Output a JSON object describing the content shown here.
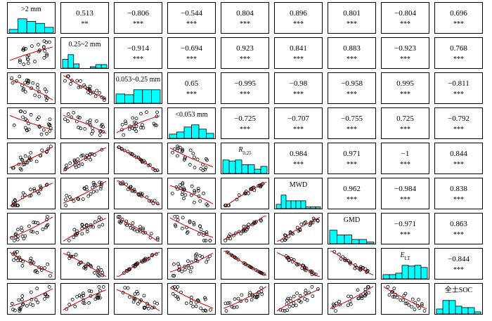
{
  "chart_data": {
    "type": "scatter-matrix",
    "variables": [
      ">2 mm",
      "0.25~2 mm",
      "0.053~0.25 mm",
      "<0.053 mm",
      "R0.25",
      "MWD",
      "GMD",
      "ELT",
      "全土SOC"
    ],
    "diagonal_labels": [
      {
        "main": ">2 mm",
        "sub": "",
        "italic": false
      },
      {
        "main": "0.25~2 mm",
        "sub": "",
        "italic": false
      },
      {
        "main": "0.053~0.25 mm",
        "sub": "",
        "italic": false
      },
      {
        "main": "<0.053 mm",
        "sub": "",
        "italic": false
      },
      {
        "main": "R",
        "sub": "0.25",
        "italic": true
      },
      {
        "main": "MWD",
        "sub": "",
        "italic": false
      },
      {
        "main": "GMD",
        "sub": "",
        "italic": false
      },
      {
        "main": "E",
        "sub": "LT",
        "italic": true
      },
      {
        "main": "全土SOC",
        "sub": "",
        "italic": false
      }
    ],
    "correlations": [
      {
        "row": 1,
        "col": 2,
        "r": "0.513",
        "sig": "**"
      },
      {
        "row": 1,
        "col": 3,
        "r": "−0.806",
        "sig": "***"
      },
      {
        "row": 1,
        "col": 4,
        "r": "−0.544",
        "sig": "***"
      },
      {
        "row": 1,
        "col": 5,
        "r": "0.804",
        "sig": "***"
      },
      {
        "row": 1,
        "col": 6,
        "r": "0.896",
        "sig": "***"
      },
      {
        "row": 1,
        "col": 7,
        "r": "0.801",
        "sig": "***"
      },
      {
        "row": 1,
        "col": 8,
        "r": "−0.804",
        "sig": "***"
      },
      {
        "row": 1,
        "col": 9,
        "r": "0.696",
        "sig": "***"
      },
      {
        "row": 2,
        "col": 3,
        "r": "−0.914",
        "sig": "***"
      },
      {
        "row": 2,
        "col": 4,
        "r": "−0.694",
        "sig": "***"
      },
      {
        "row": 2,
        "col": 5,
        "r": "0.923",
        "sig": "***"
      },
      {
        "row": 2,
        "col": 6,
        "r": "0.841",
        "sig": "***"
      },
      {
        "row": 2,
        "col": 7,
        "r": "0.883",
        "sig": "***"
      },
      {
        "row": 2,
        "col": 8,
        "r": "−0.923",
        "sig": "***"
      },
      {
        "row": 2,
        "col": 9,
        "r": "0.768",
        "sig": "***"
      },
      {
        "row": 3,
        "col": 4,
        "r": "0.65",
        "sig": "***"
      },
      {
        "row": 3,
        "col": 5,
        "r": "−0.995",
        "sig": "***"
      },
      {
        "row": 3,
        "col": 6,
        "r": "−0.98",
        "sig": "***"
      },
      {
        "row": 3,
        "col": 7,
        "r": "−0.958",
        "sig": "***"
      },
      {
        "row": 3,
        "col": 8,
        "r": "0.995",
        "sig": "***"
      },
      {
        "row": 3,
        "col": 9,
        "r": "−0.811",
        "sig": "***"
      },
      {
        "row": 4,
        "col": 5,
        "r": "−0.725",
        "sig": "***"
      },
      {
        "row": 4,
        "col": 6,
        "r": "−0.707",
        "sig": "***"
      },
      {
        "row": 4,
        "col": 7,
        "r": "−0.755",
        "sig": "***"
      },
      {
        "row": 4,
        "col": 8,
        "r": "0.725",
        "sig": "***"
      },
      {
        "row": 4,
        "col": 9,
        "r": "−0.792",
        "sig": "***"
      },
      {
        "row": 5,
        "col": 6,
        "r": "0.984",
        "sig": "***"
      },
      {
        "row": 5,
        "col": 7,
        "r": "0.971",
        "sig": "***"
      },
      {
        "row": 5,
        "col": 8,
        "r": "−1",
        "sig": "***"
      },
      {
        "row": 5,
        "col": 9,
        "r": "0.844",
        "sig": "***"
      },
      {
        "row": 6,
        "col": 7,
        "r": "0.962",
        "sig": "***"
      },
      {
        "row": 6,
        "col": 8,
        "r": "−0.984",
        "sig": "***"
      },
      {
        "row": 6,
        "col": 9,
        "r": "0.838",
        "sig": "***"
      },
      {
        "row": 7,
        "col": 8,
        "r": "−0.971",
        "sig": "***"
      },
      {
        "row": 7,
        "col": 9,
        "r": "0.863",
        "sig": "***"
      },
      {
        "row": 8,
        "col": 9,
        "r": "−0.844",
        "sig": "***"
      }
    ],
    "histograms": [
      [
        0.25,
        1.0,
        0.82,
        0.68,
        0.4
      ],
      [
        0.62,
        0.95,
        0.3,
        0.0,
        0.0,
        0.1,
        0.25,
        0.25
      ],
      [
        0.65,
        0.6,
        0.95,
        0.95,
        0.95
      ],
      [
        0.3,
        0.45,
        0.8,
        0.95,
        0.65,
        0.35
      ],
      [
        0.95,
        0.88,
        0.95,
        0.62,
        0.62,
        0.3,
        0.5
      ],
      [
        0.3,
        0.95,
        0.55,
        0.55,
        0.55,
        0.55,
        0.12,
        0.12,
        0.12
      ],
      [
        0.95,
        0.62,
        0.62,
        0.3,
        0.3,
        0.12
      ],
      [
        0.3,
        0.3,
        0.4,
        0.95,
        0.9,
        0.95,
        0.8
      ],
      [
        0.35,
        0.95,
        0.95,
        0.55,
        0.45,
        0.45,
        0.15
      ]
    ],
    "colors": {
      "histogram_fill": "#00ffff",
      "fit_line": "#cc0000",
      "points": "#000000",
      "frame": "#000000"
    }
  }
}
